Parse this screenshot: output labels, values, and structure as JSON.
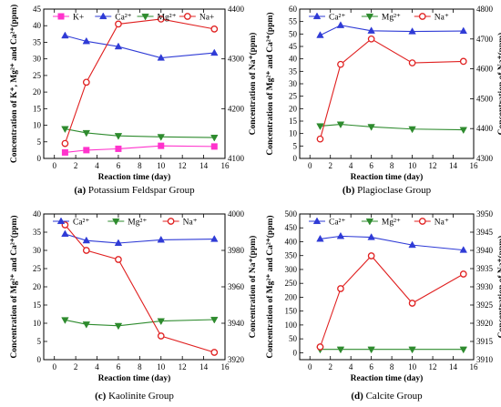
{
  "figure_captions": [
    {
      "tag": "(a)",
      "text": "Potassium Feldspar Group"
    },
    {
      "tag": "(b)",
      "text": "Plagioclase Group"
    },
    {
      "tag": "(c)",
      "text": "Kaolinite Group"
    },
    {
      "tag": "(d)",
      "text": "Calcite Group"
    }
  ],
  "chart_data": [
    {
      "type": "line",
      "panel": "a",
      "title": "(a) Potassium Feldspar Group",
      "xlabel": "Reaction time (day)",
      "ylabel": "Concentration of K⁺, Mg²⁺ and Ca²⁺(ppm)",
      "y2label": "Concentration of Na⁺(ppm)",
      "xlim": [
        -1,
        16
      ],
      "xticks": [
        0,
        2,
        4,
        6,
        8,
        10,
        12,
        14,
        16
      ],
      "ylim": [
        0,
        45
      ],
      "yticks": [
        0,
        5,
        10,
        15,
        20,
        25,
        30,
        35,
        40,
        45
      ],
      "y2lim": [
        4100,
        4400
      ],
      "y2ticks": [
        4100,
        4200,
        4300,
        4400
      ],
      "x": [
        1,
        3,
        6,
        10,
        15
      ],
      "legend_position": "top",
      "series": [
        {
          "name": "K+",
          "axis": "left",
          "color": "#ff33cc",
          "marker": "square",
          "values": [
            1.8,
            2.5,
            2.9,
            3.8,
            3.6
          ]
        },
        {
          "name": "Ca²⁺",
          "axis": "left",
          "color": "#2f3bd6",
          "marker": "triangle-up",
          "values": [
            37,
            35.3,
            33.7,
            30.3,
            31.8
          ]
        },
        {
          "name": "Mg²⁺",
          "axis": "left",
          "color": "#2e8b2e",
          "marker": "triangle-down",
          "values": [
            8.9,
            7.7,
            6.8,
            6.5,
            6.3
          ]
        },
        {
          "name": "Na+",
          "axis": "right",
          "color": "#e02020",
          "marker": "circle",
          "values": [
            4130,
            4253,
            4370,
            4380,
            4360
          ]
        }
      ]
    },
    {
      "type": "line",
      "panel": "b",
      "title": "(b) Plagioclase Group",
      "xlabel": "Reaction time (day)",
      "ylabel": "Concentration of Mg²⁺ and Ca²⁺(ppm)",
      "y2label": "Concentration of Na⁺(ppm)",
      "xlim": [
        -1,
        16
      ],
      "xticks": [
        0,
        2,
        4,
        6,
        8,
        10,
        12,
        14,
        16
      ],
      "ylim": [
        0,
        60
      ],
      "yticks": [
        0,
        5,
        10,
        15,
        20,
        25,
        30,
        35,
        40,
        45,
        50,
        55,
        60
      ],
      "y2lim": [
        4300,
        4800
      ],
      "y2ticks": [
        4300,
        4400,
        4500,
        4600,
        4700,
        4800
      ],
      "x": [
        1,
        3,
        6,
        10,
        15
      ],
      "legend_position": "top",
      "series": [
        {
          "name": "Ca²⁺",
          "axis": "left",
          "color": "#2f3bd6",
          "marker": "triangle-up",
          "values": [
            49.5,
            53.5,
            51.3,
            51,
            51.2
          ]
        },
        {
          "name": "Mg²⁺",
          "axis": "left",
          "color": "#2e8b2e",
          "marker": "triangle-down",
          "values": [
            13,
            13.7,
            12.7,
            11.8,
            11.5
          ]
        },
        {
          "name": "Na⁺",
          "axis": "right",
          "color": "#e02020",
          "marker": "circle",
          "values": [
            4365,
            4615,
            4700,
            4620,
            4625
          ]
        }
      ]
    },
    {
      "type": "line",
      "panel": "c",
      "title": "(c) Kaolinite Group",
      "xlabel": "Reaction time (day)",
      "ylabel": "Concentration of Mg²⁺ and Ca²⁺(ppm)",
      "y2label": "Concentration of Na⁺(ppm)",
      "xlim": [
        -1,
        16
      ],
      "xticks": [
        0,
        2,
        4,
        6,
        8,
        10,
        12,
        14,
        16
      ],
      "ylim": [
        0,
        40
      ],
      "yticks": [
        0,
        5,
        10,
        15,
        20,
        25,
        30,
        35,
        40
      ],
      "y2lim": [
        3920,
        4000
      ],
      "y2ticks": [
        3920,
        3940,
        3960,
        3980,
        4000
      ],
      "x": [
        1,
        3,
        6,
        10,
        15
      ],
      "legend_position": "top",
      "series": [
        {
          "name": "Ca²⁺",
          "axis": "left",
          "color": "#2f3bd6",
          "marker": "triangle-up",
          "values": [
            34.5,
            32.7,
            32,
            32.9,
            33.1
          ]
        },
        {
          "name": "Mg²⁺",
          "axis": "left",
          "color": "#2e8b2e",
          "marker": "triangle-down",
          "values": [
            10.9,
            9.7,
            9.3,
            10.6,
            11
          ]
        },
        {
          "name": "Na⁺",
          "axis": "right",
          "color": "#e02020",
          "marker": "circle",
          "values": [
            3994,
            3980,
            3975,
            3933,
            3924
          ]
        }
      ]
    },
    {
      "type": "line",
      "panel": "d",
      "title": "(d) Calcite Group",
      "xlabel": "Reaction time (day)",
      "ylabel": "Concentration of Mg²⁺ and Ca²⁺(ppm)",
      "y2label": "Concentration of Na⁺(ppm)",
      "xlim": [
        -1,
        16
      ],
      "xticks": [
        0,
        2,
        4,
        6,
        8,
        10,
        12,
        14,
        16
      ],
      "ylim": [
        -25,
        500
      ],
      "yticks": [
        0,
        50,
        100,
        150,
        200,
        250,
        300,
        350,
        400,
        450,
        500
      ],
      "y2lim": [
        3910,
        3950
      ],
      "y2ticks": [
        3910,
        3915,
        3920,
        3925,
        3930,
        3935,
        3940,
        3945,
        3950
      ],
      "x": [
        1,
        3,
        6,
        10,
        15
      ],
      "legend_position": "top",
      "series": [
        {
          "name": "Ca²⁺",
          "axis": "left",
          "color": "#2f3bd6",
          "marker": "triangle-up",
          "values": [
            410,
            420,
            416,
            388,
            370
          ]
        },
        {
          "name": "Mg²⁺",
          "axis": "left",
          "color": "#2e8b2e",
          "marker": "triangle-down",
          "values": [
            12,
            12,
            12,
            12,
            12
          ]
        },
        {
          "name": "Na⁺",
          "axis": "right",
          "color": "#e02020",
          "marker": "circle",
          "values": [
            3913.5,
            3929.5,
            3938.5,
            3925.5,
            3933.5
          ]
        }
      ]
    }
  ]
}
